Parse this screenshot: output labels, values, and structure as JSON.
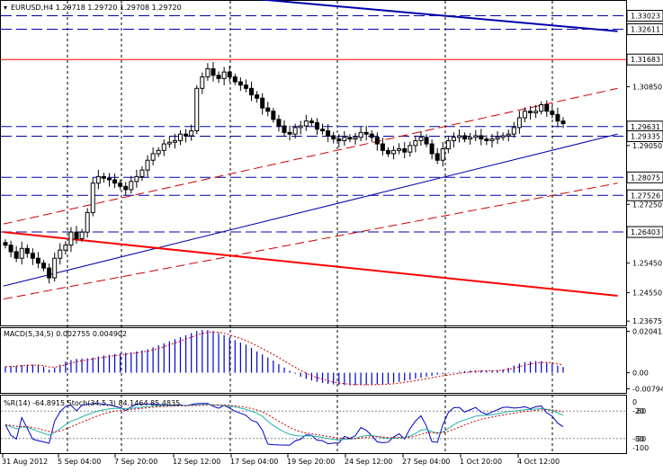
{
  "header": {
    "symbol_label": "EURUSD,H4  1.29718 1.29720 1.29708 1.29720"
  },
  "chart_data": {
    "type": "candlestick",
    "symbol": "EURUSD",
    "timeframe": "H4",
    "ohlc_header": {
      "open": 1.29718,
      "high": 1.2972,
      "low": 1.29708,
      "close": 1.2972
    },
    "price_ylim": [
      1.2357,
      1.3345
    ],
    "price_ticks": [
      1.3085,
      1.2905,
      1.2725,
      1.2545,
      1.2455,
      1.23675
    ],
    "horizontal_levels": [
      {
        "price": 1.33023,
        "label": "1.33023",
        "style": "dashed",
        "color": "#0000aa"
      },
      {
        "price": 1.32611,
        "label": "1.32611",
        "style": "dashed",
        "color": "#0000aa"
      },
      {
        "price": 1.31683,
        "label": "1.31683",
        "style": "solid",
        "color": "#ff0000"
      },
      {
        "price": 1.29631,
        "label": "1.29631",
        "style": "dashed",
        "color": "#0000aa"
      },
      {
        "price": 1.29335,
        "label": "1.29335",
        "style": "dashed",
        "color": "#0000aa"
      },
      {
        "price": 1.28075,
        "label": "1.28075",
        "style": "dashed",
        "color": "#0000aa"
      },
      {
        "price": 1.27526,
        "label": "1.27526",
        "style": "dashed",
        "color": "#0000aa"
      },
      {
        "price": 1.26403,
        "label": "1.26403",
        "style": "dashed",
        "color": "#0000aa"
      }
    ],
    "time_labels": [
      "31 Aug 2012",
      "5 Sep 04:00",
      "7 Sep 20:00",
      "12 Sep 12:00",
      "17 Sep 04:00",
      "19 Sep 20:00",
      "24 Sep 12:00",
      "27 Sep 04:00",
      "1 Oct 20:00",
      "4 Oct 12:00"
    ],
    "close_series": [
      1.26,
      1.258,
      1.256,
      1.259,
      1.2575,
      1.256,
      1.2545,
      1.253,
      1.25,
      1.256,
      1.2585,
      1.26,
      1.264,
      1.262,
      1.264,
      1.27,
      1.279,
      1.281,
      1.2805,
      1.28,
      1.279,
      1.278,
      1.277,
      1.2795,
      1.281,
      1.283,
      1.286,
      1.288,
      1.289,
      1.291,
      1.2915,
      1.292,
      1.294,
      1.2935,
      1.295,
      1.308,
      1.3115,
      1.314,
      1.312,
      1.311,
      1.313,
      1.3115,
      1.31,
      1.309,
      1.308,
      1.306,
      1.305,
      1.302,
      1.301,
      1.2985,
      1.2965,
      1.2945,
      1.294,
      1.296,
      1.2965,
      1.298,
      1.2975,
      1.2955,
      1.295,
      1.2935,
      1.2925,
      1.292,
      1.293,
      1.2925,
      1.293,
      1.2945,
      1.294,
      1.293,
      1.291,
      1.289,
      1.288,
      1.289,
      1.2895,
      1.2885,
      1.2905,
      1.292,
      1.293,
      1.291,
      1.288,
      1.286,
      1.2895,
      1.292,
      1.293,
      1.2935,
      1.2925,
      1.293,
      1.2935,
      1.2925,
      1.292,
      1.2925,
      1.293,
      1.2935,
      1.294,
      1.296,
      1.299,
      1.301,
      1.3005,
      1.301,
      1.303,
      1.301,
      1.3,
      1.298,
      1.2972
    ],
    "trend_lines": [
      {
        "name": "upper-blue",
        "color": "#0000aa",
        "width": 2,
        "style": "solid",
        "from": {
          "x": 0.4,
          "price": 1.3355
        },
        "to": {
          "x": 0.995,
          "price": 1.3255
        }
      },
      {
        "name": "lower-blue",
        "color": "#0000aa",
        "width": 1,
        "style": "solid",
        "from": {
          "x": 0.0,
          "price": 1.2475
        },
        "to": {
          "x": 0.995,
          "price": 1.294
        }
      },
      {
        "name": "upper-red-dashed",
        "color": "#cc0000",
        "width": 1,
        "style": "dashed",
        "from": {
          "x": 0.0,
          "price": 1.2665
        },
        "to": {
          "x": 0.995,
          "price": 1.308
        }
      },
      {
        "name": "lower-red-dashed",
        "color": "#cc0000",
        "width": 1,
        "style": "dashed",
        "from": {
          "x": 0.0,
          "price": 1.2435
        },
        "to": {
          "x": 0.995,
          "price": 1.279
        }
      },
      {
        "name": "red-solid",
        "color": "#ff0000",
        "width": 2,
        "style": "solid",
        "from": {
          "x": 0.0,
          "price": 1.264
        },
        "to": {
          "x": 0.995,
          "price": 1.2445
        }
      }
    ],
    "macd": {
      "label": "MACD(5,34,5) 0.002755 0.004902",
      "ylim": [
        -0.0095,
        0.0215
      ],
      "ticks": [
        0.020413,
        0.0,
        -0.00794
      ],
      "tick_labels": [
        "0.020413",
        "0.00",
        "-0.00794"
      ],
      "histogram": [
        0.003,
        0.0033,
        0.0035,
        0.0038,
        0.004,
        0.004,
        0.0038,
        0.003,
        0.0015,
        0.0025,
        0.004,
        0.0055,
        0.0062,
        0.0068,
        0.007,
        0.0071,
        0.0075,
        0.008,
        0.0085,
        0.0088,
        0.0092,
        0.0095,
        0.0098,
        0.01,
        0.0105,
        0.011,
        0.0115,
        0.0125,
        0.0135,
        0.0145,
        0.0155,
        0.0165,
        0.0175,
        0.0185,
        0.0195,
        0.0205,
        0.021,
        0.021,
        0.0205,
        0.0195,
        0.0185,
        0.0172,
        0.016,
        0.0148,
        0.0138,
        0.0122,
        0.0105,
        0.009,
        0.0075,
        0.006,
        0.0042,
        0.0025,
        0.001,
        -0.0005,
        -0.002,
        -0.003,
        -0.0038,
        -0.0045,
        -0.005,
        -0.0055,
        -0.0058,
        -0.006,
        -0.0061,
        -0.0062,
        -0.0062,
        -0.0061,
        -0.006,
        -0.0058,
        -0.0057,
        -0.0056,
        -0.0055,
        -0.005,
        -0.0045,
        -0.004,
        -0.0035,
        -0.003,
        -0.0025,
        -0.002,
        -0.0015,
        -0.001,
        -0.0006,
        -0.0003,
        0.0002,
        0.0005,
        0.0008,
        0.001,
        0.0012,
        0.0012,
        0.0011,
        0.001,
        0.0012,
        0.0016,
        0.0024,
        0.0035,
        0.0045,
        0.0052,
        0.0055,
        0.0057,
        0.0056,
        0.005,
        0.0042,
        0.0035,
        0.0028
      ]
    },
    "oscillators": {
      "label": "%R(14) -64.8915  Stoch(34,5,3) 84.1464 85.4835",
      "right_labels": [
        "-20",
        "-80"
      ],
      "right_labels_secondary": [
        "80",
        "20"
      ],
      "right_scale_edges": [
        "0",
        "-100"
      ],
      "levels": [
        -20,
        -80
      ]
    }
  }
}
